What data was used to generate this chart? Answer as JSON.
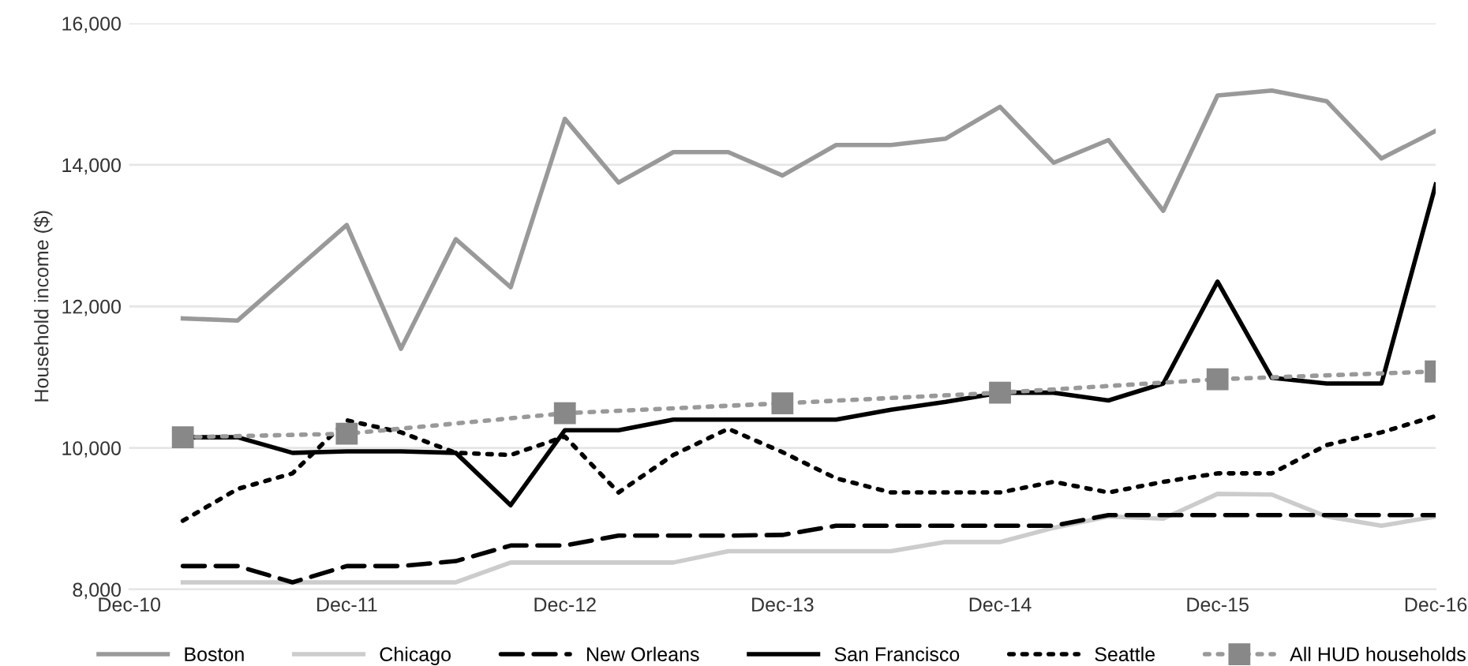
{
  "chart_data": {
    "type": "line",
    "ylabel": "Household income ($)",
    "x": [
      "2011-03",
      "2011-06",
      "2011-09",
      "2011-12",
      "2012-03",
      "2012-06",
      "2012-09",
      "2012-12",
      "2013-03",
      "2013-06",
      "2013-09",
      "2013-12",
      "2014-03",
      "2014-06",
      "2014-09",
      "2014-12",
      "2015-03",
      "2015-06",
      "2015-09",
      "2015-12",
      "2016-03",
      "2016-06",
      "2016-09",
      "2016-12"
    ],
    "series": [
      {
        "name": "Boston",
        "color": "#999999",
        "line_style": "solid",
        "values": [
          11830,
          11800,
          12480,
          13150,
          11400,
          12950,
          12270,
          14650,
          13750,
          14180,
          14180,
          13850,
          14280,
          14280,
          14370,
          14820,
          14030,
          14350,
          13350,
          14980,
          15050,
          14900,
          14090,
          14480
        ]
      },
      {
        "name": "Chicago",
        "color": "#cccccc",
        "line_style": "solid",
        "values": [
          8100,
          8100,
          8100,
          8100,
          8100,
          8100,
          8380,
          8380,
          8380,
          8380,
          8540,
          8540,
          8540,
          8540,
          8670,
          8670,
          8870,
          9030,
          9000,
          9350,
          9340,
          9030,
          8900,
          9030
        ]
      },
      {
        "name": "New Orleans",
        "color": "#000000",
        "line_style": "dashed",
        "values": [
          8330,
          8330,
          8100,
          8330,
          8330,
          8400,
          8620,
          8620,
          8760,
          8760,
          8760,
          8770,
          8900,
          8900,
          8900,
          8900,
          8900,
          9050,
          9050,
          9050,
          9050,
          9050,
          9050,
          9050
        ]
      },
      {
        "name": "San Francisco",
        "color": "#000000",
        "line_style": "solid",
        "values": [
          10150,
          10150,
          9930,
          9950,
          9950,
          9930,
          9190,
          10250,
          10250,
          10400,
          10400,
          10400,
          10400,
          10540,
          10650,
          10780,
          10780,
          10670,
          10910,
          12350,
          10990,
          10910,
          10910,
          13720
        ]
      },
      {
        "name": "Seattle",
        "color": "#000000",
        "line_style": "dotted",
        "values": [
          8970,
          9420,
          9640,
          10390,
          10220,
          9930,
          9900,
          10160,
          9370,
          9900,
          10270,
          9940,
          9570,
          9370,
          9370,
          9370,
          9520,
          9370,
          9520,
          9640,
          9640,
          10040,
          10220,
          10450
        ]
      },
      {
        "name": "All HUD households",
        "color": "#999999",
        "line_style": "dotted",
        "marker": "square",
        "x": [
          "2011-03",
          "2011-12",
          "2012-12",
          "2013-12",
          "2014-12",
          "2015-12",
          "2016-12"
        ],
        "values": [
          10150,
          10200,
          10490,
          10630,
          10780,
          10970,
          11080
        ]
      }
    ],
    "xlim": [
      "2010-12",
      "2016-12"
    ],
    "xticks": [
      {
        "value": "2010-12",
        "label": "Dec-10"
      },
      {
        "value": "2011-12",
        "label": "Dec-11"
      },
      {
        "value": "2012-12",
        "label": "Dec-12"
      },
      {
        "value": "2013-12",
        "label": "Dec-13"
      },
      {
        "value": "2014-12",
        "label": "Dec-14"
      },
      {
        "value": "2015-12",
        "label": "Dec-15"
      },
      {
        "value": "2016-12",
        "label": "Dec-16"
      }
    ],
    "ylim": [
      8000,
      16000
    ],
    "yticks": [
      {
        "value": 8000,
        "label": "8,000"
      },
      {
        "value": 10000,
        "label": "10,000"
      },
      {
        "value": 12000,
        "label": "12,000"
      },
      {
        "value": 14000,
        "label": "14,000"
      },
      {
        "value": 16000,
        "label": "16,000"
      }
    ],
    "grid": "y",
    "legend": "bottom"
  }
}
